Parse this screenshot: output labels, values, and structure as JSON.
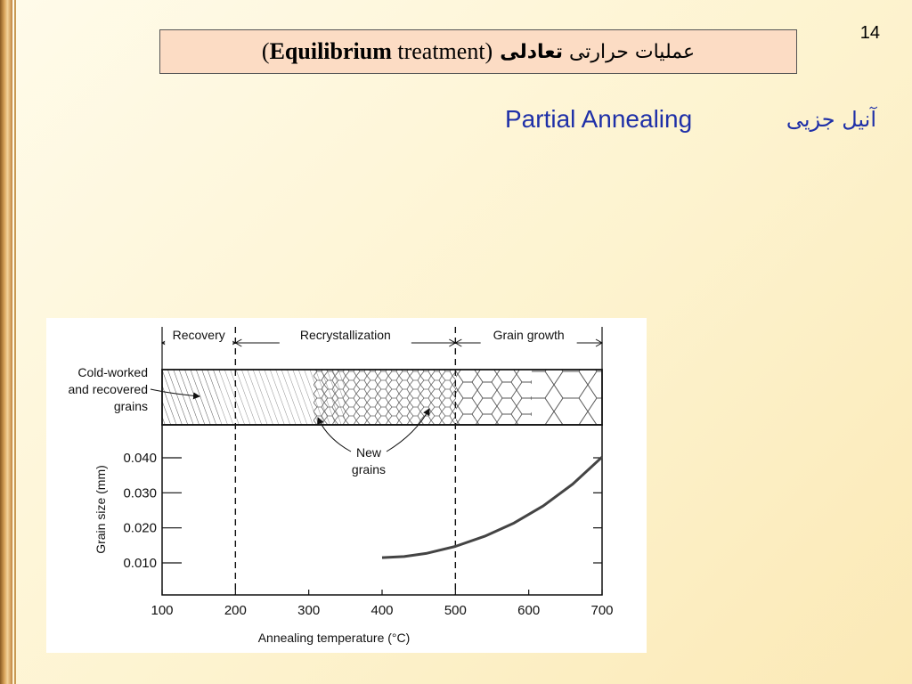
{
  "slide_number": "14",
  "title": {
    "open_paren": "(",
    "bold_word": "Equilibrium",
    "normal_word": "treatment)",
    "persian": "عملیات حرارتی",
    "persian_bold": "تعادلی"
  },
  "subtitle_en": "Partial Annealing",
  "subtitle_fa": "آنیل جزیی",
  "chart_data": {
    "type": "line",
    "xlabel": "Annealing temperature (°C)",
    "ylabel": "Grain size (mm)",
    "xlim": [
      100,
      700
    ],
    "ylim": [
      0,
      0.05
    ],
    "x_ticks": [
      "100",
      "200",
      "300",
      "400",
      "500",
      "600",
      "700"
    ],
    "y_ticks": [
      "0.010",
      "0.020",
      "0.030",
      "0.040"
    ],
    "series": [
      {
        "x": [
          400,
          430,
          460,
          500,
          540,
          580,
          620,
          660,
          700
        ],
        "y": [
          0.0115,
          0.0118,
          0.0127,
          0.0147,
          0.0176,
          0.0214,
          0.0263,
          0.0325,
          0.0402
        ]
      }
    ],
    "regions": [
      {
        "label": "Recovery",
        "from": 100,
        "to": 200
      },
      {
        "label": "Recrystallization",
        "from": 200,
        "to": 500
      },
      {
        "label": "Grain growth",
        "from": 500,
        "to": 700
      }
    ],
    "boundaries": [
      200,
      500
    ],
    "annotations": {
      "cold_worked": [
        "Cold-worked",
        "and recovered",
        "grains"
      ],
      "new_grains": [
        "New",
        "grains"
      ]
    },
    "colors": {
      "curve": "#444444",
      "axes": "#000000"
    },
    "grid": false
  }
}
